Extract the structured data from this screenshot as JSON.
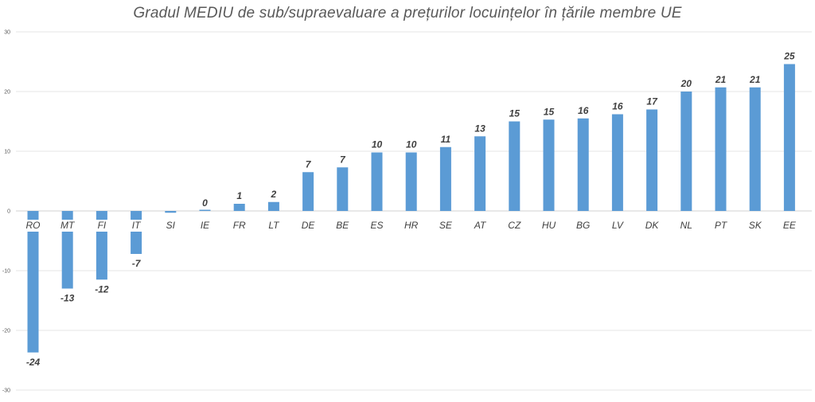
{
  "chart_data": {
    "type": "bar",
    "title": "Gradul MEDIU de sub/supraevaluare a prețurilor locuințelor în țările membre UE",
    "xlabel": "",
    "ylabel": "",
    "ylim": [
      -30,
      30
    ],
    "yticks": [
      30,
      20,
      10,
      0,
      -10,
      -20,
      -30
    ],
    "grid": true,
    "legend": "none",
    "bar_color": "#5b9bd5",
    "categories": [
      "RO",
      "MT",
      "FI",
      "IT",
      "SI",
      "IE",
      "FR",
      "LT",
      "DE",
      "BE",
      "ES",
      "HR",
      "SE",
      "AT",
      "CZ",
      "HU",
      "BG",
      "LV",
      "DK",
      "NL",
      "PT",
      "SK",
      "EE"
    ],
    "values": [
      -23.7,
      -13.0,
      -11.5,
      -7.2,
      -0.3,
      0.0,
      1.2,
      1.5,
      6.5,
      7.3,
      9.8,
      9.8,
      10.7,
      12.5,
      15.0,
      15.3,
      15.5,
      16.2,
      17.0,
      20.0,
      20.7,
      20.7,
      24.6
    ],
    "data_labels": [
      "-24",
      "-13",
      "-12",
      "-7",
      "",
      "0",
      "1",
      "2",
      "7",
      "7",
      "10",
      "10",
      "11",
      "13",
      "15",
      "15",
      "16",
      "16",
      "17",
      "20",
      "21",
      "21",
      "25"
    ]
  }
}
